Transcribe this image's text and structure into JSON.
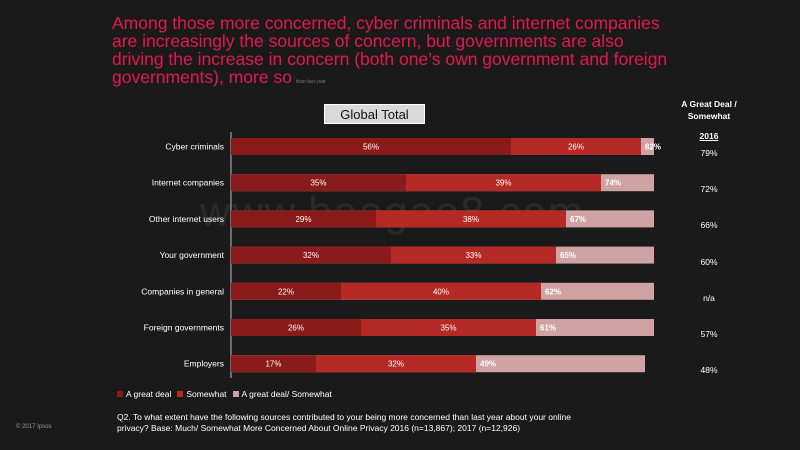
{
  "title": "Among those more concerned, cyber criminals and internet companies are increasingly the sources of concern, but governments are also driving the increase in concern (both one’s own government and foreign governments), more so",
  "title_note": "than last year",
  "badge": "Global Total",
  "right_header": "A Great Deal / Somewhat",
  "right_year": "2016",
  "legend": {
    "items": [
      {
        "label": "A great deal",
        "color": "#8b1a1a"
      },
      {
        "label": "Somewhat",
        "color": "#b52a24"
      },
      {
        "label": "A great deal/ Somewhat",
        "color": "#cfa3a3"
      }
    ]
  },
  "question": "Q2. To what extent have the following sources contributed to your being more concerned than last year about your online privacy? Base: Much/ Somewhat More Concerned About Online Privacy 2016 (n=13,867); 2017 (n=12,926)",
  "copyright": "© 2017 Ipsos",
  "watermark": "www.baogao8.com",
  "chart_data": {
    "type": "bar",
    "orientation": "horizontal",
    "stacked": true,
    "title": "Global Total",
    "categories": [
      "Cyber criminals",
      "Internet companies",
      "Other internet users",
      "Your government",
      "Companies in general",
      "Foreign governments",
      "Employers"
    ],
    "series": [
      {
        "name": "A great deal",
        "values": [
          56,
          35,
          29,
          32,
          22,
          26,
          17
        ],
        "color": "#8b1a1a"
      },
      {
        "name": "Somewhat",
        "values": [
          26,
          39,
          38,
          33,
          40,
          35,
          32
        ],
        "color": "#b52a24"
      },
      {
        "name": "A great deal/ Somewhat",
        "values": [
          82,
          74,
          67,
          65,
          62,
          61,
          49
        ],
        "color": "#cfa3a3"
      }
    ],
    "value_labels": {
      "A great deal": [
        "56%",
        "35%",
        "29%",
        "32%",
        "22%",
        "26%",
        "17%"
      ],
      "Somewhat": [
        "26%",
        "39%",
        "38%",
        "33%",
        "40%",
        "35%",
        "32%"
      ],
      "A great deal/ Somewhat": [
        "82%",
        "74%",
        "67%",
        "65%",
        "62%",
        "61%",
        "49%"
      ]
    },
    "comparison_2016": [
      "79%",
      "72%",
      "66%",
      "60%",
      "n/a",
      "57%",
      "48%"
    ],
    "legend_position": "bottom-left"
  }
}
